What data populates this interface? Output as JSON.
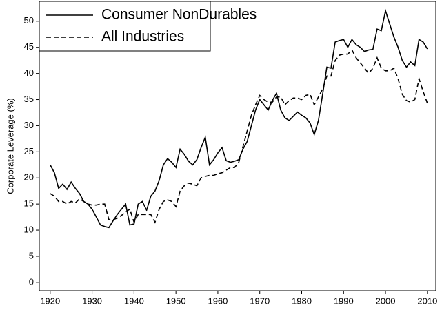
{
  "chart_data": {
    "type": "line",
    "y_label": "Corporate Leverage (%)",
    "x": [
      1920,
      1921,
      1922,
      1923,
      1924,
      1925,
      1926,
      1927,
      1928,
      1929,
      1930,
      1931,
      1932,
      1933,
      1934,
      1935,
      1936,
      1937,
      1938,
      1939,
      1940,
      1941,
      1942,
      1943,
      1944,
      1945,
      1946,
      1947,
      1948,
      1949,
      1950,
      1951,
      1952,
      1953,
      1954,
      1955,
      1956,
      1957,
      1958,
      1959,
      1960,
      1961,
      1962,
      1963,
      1964,
      1965,
      1966,
      1967,
      1968,
      1969,
      1970,
      1971,
      1972,
      1973,
      1974,
      1975,
      1976,
      1977,
      1978,
      1979,
      1980,
      1981,
      1982,
      1983,
      1984,
      1985,
      1986,
      1987,
      1988,
      1989,
      1990,
      1991,
      1992,
      1993,
      1994,
      1995,
      1996,
      1997,
      1998,
      1999,
      2000,
      2001,
      2002,
      2003,
      2004,
      2005,
      2006,
      2007,
      2008,
      2009,
      2010
    ],
    "series": [
      {
        "name": "Consumer NonDurables",
        "color": "#000000",
        "style": "solid",
        "values": [
          22.5,
          21,
          18,
          18.8,
          17.8,
          19.2,
          18,
          17,
          15.5,
          15,
          14,
          12.5,
          11,
          10.7,
          10.5,
          11.8,
          13,
          14,
          15,
          11,
          11.2,
          15,
          15.5,
          13.8,
          16.5,
          17.5,
          19.5,
          22.5,
          23.7,
          23,
          22,
          25.5,
          24.5,
          23.2,
          22.5,
          23.5,
          25.8,
          27.8,
          22.5,
          23.5,
          24.8,
          25.8,
          23.3,
          23,
          23.2,
          23.5,
          25.5,
          27,
          30,
          33,
          35,
          34,
          33,
          34.8,
          36.2,
          33,
          31.5,
          31,
          31.8,
          32.6,
          32,
          31.5,
          30.5,
          28.3,
          31,
          36,
          41.2,
          41,
          46,
          46.3,
          46.5,
          45,
          46.5,
          45.5,
          45,
          44.2,
          44.5,
          44.6,
          48.5,
          48.2,
          52,
          49.5,
          47,
          45,
          42.5,
          41.2,
          42.2,
          41.5,
          46.5,
          46,
          44.7
        ]
      },
      {
        "name": "All Industries",
        "color": "#000000",
        "style": "dashed",
        "values": [
          17,
          16.5,
          15.5,
          15.5,
          15,
          15.5,
          15.2,
          16,
          15.5,
          15,
          14.8,
          14.8,
          15,
          15,
          12,
          12,
          12.3,
          12.8,
          13.5,
          14,
          11.5,
          13,
          13,
          13,
          13,
          11.5,
          14,
          15.5,
          15.8,
          15.5,
          14.5,
          17.5,
          18.5,
          19,
          18.8,
          18.5,
          20,
          20.3,
          20.5,
          20.5,
          20.8,
          21,
          21.5,
          22,
          22,
          23,
          26,
          29,
          32,
          34,
          35.8,
          35,
          34.5,
          34.5,
          35.5,
          35.5,
          34,
          34.8,
          35.3,
          35.3,
          35,
          35.8,
          36,
          34,
          35.5,
          37,
          39.5,
          39.5,
          42.5,
          43.5,
          43.7,
          43.7,
          44.5,
          43,
          42,
          41,
          40,
          41,
          43,
          41,
          40.5,
          40.5,
          41,
          39,
          36,
          34.8,
          34.5,
          35,
          39,
          36.5,
          34.3
        ]
      }
    ],
    "xlim": [
      1917.4,
      2012
    ],
    "ylim": [
      -1.6,
      53.8
    ],
    "xticks": [
      1920,
      1930,
      1940,
      1950,
      1960,
      1970,
      1980,
      1990,
      2000,
      2010
    ],
    "yticks": [
      0,
      5,
      10,
      15,
      20,
      25,
      30,
      35,
      40,
      45,
      50
    ],
    "legend": "upper left"
  }
}
